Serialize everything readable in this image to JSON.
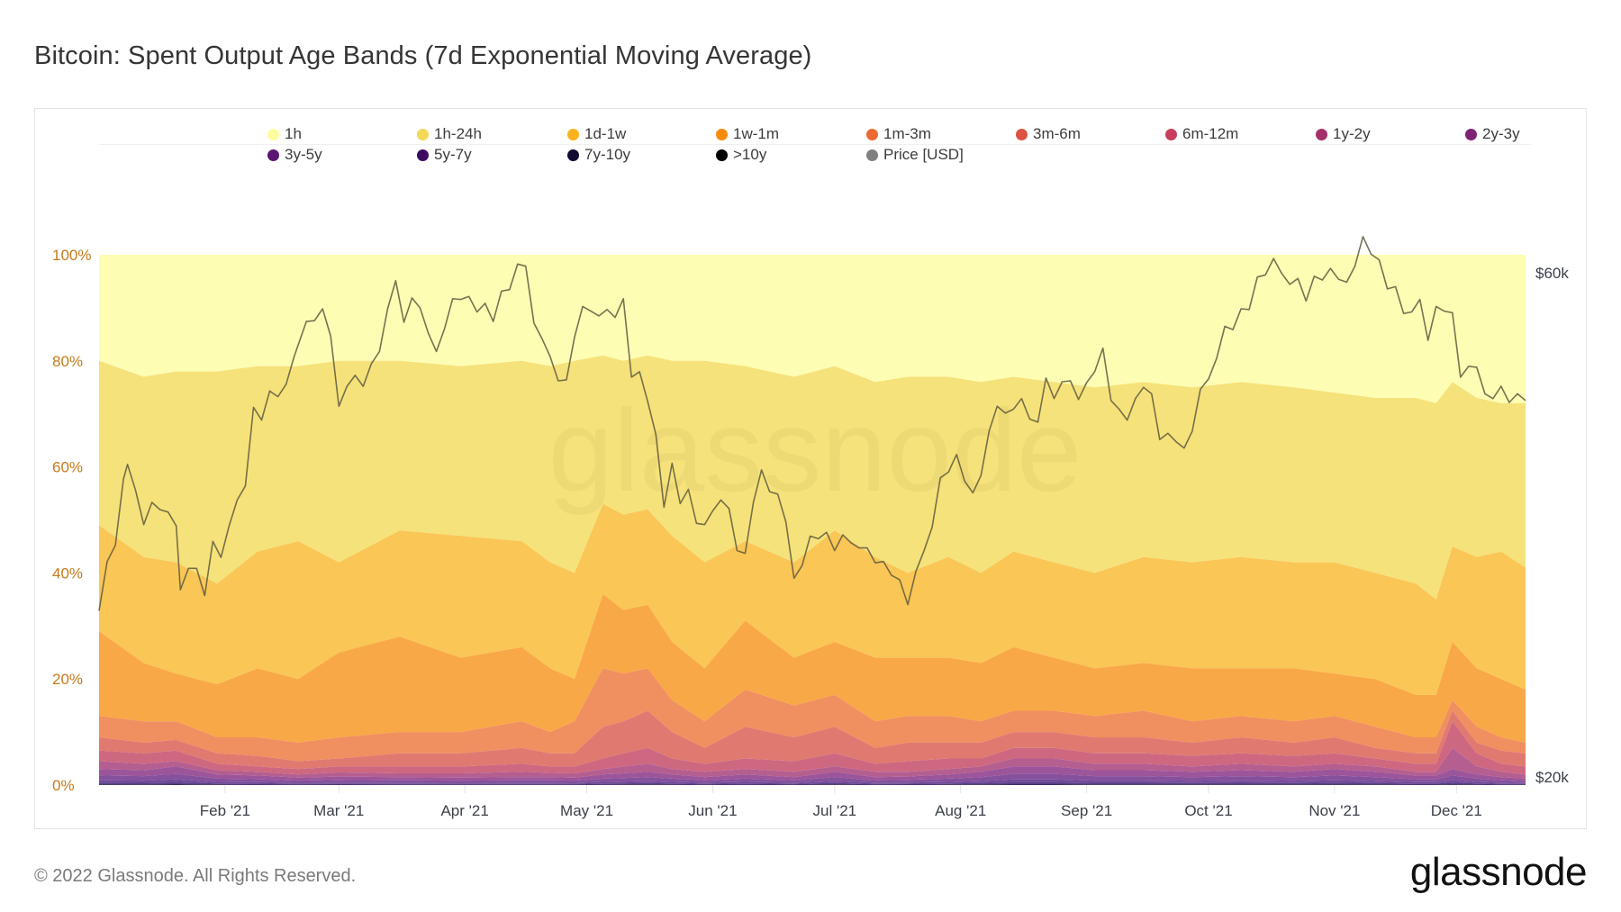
{
  "title": "Bitcoin: Spent Output Age Bands (7d Exponential Moving Average)",
  "footer": {
    "copyright": "© 2022 Glassnode. All Rights Reserved.",
    "logo": "glassnode"
  },
  "watermark": "glassnode",
  "chart_data": {
    "type": "area",
    "stacked": true,
    "title": "Bitcoin: Spent Output Age Bands (7d Exponential Moving Average)",
    "x_unit": "day of year 2021",
    "x_range": [
      1,
      352
    ],
    "y_left": {
      "label": "",
      "range": [
        0,
        100
      ],
      "ticks": [
        "0%",
        "20%",
        "40%",
        "60%",
        "80%",
        "100%"
      ],
      "tick_values": [
        0,
        20,
        40,
        60,
        80,
        100
      ]
    },
    "y_right": {
      "label": "Price [USD]",
      "scale": "log",
      "ticks": [
        "$20k",
        "$60k"
      ],
      "tick_values": [
        20,
        60
      ]
    },
    "x_ticks": [
      {
        "label": "Feb '21",
        "day": 32
      },
      {
        "label": "Mar '21",
        "day": 60
      },
      {
        "label": "Apr '21",
        "day": 91
      },
      {
        "label": "May '21",
        "day": 121
      },
      {
        "label": "Jun '21",
        "day": 152
      },
      {
        "label": "Jul '21",
        "day": 182
      },
      {
        "label": "Aug '21",
        "day": 213
      },
      {
        "label": "Sep '21",
        "day": 244
      },
      {
        "label": "Oct '21",
        "day": 274
      },
      {
        "label": "Nov '21",
        "day": 305
      },
      {
        "label": "Dec '21",
        "day": 335
      }
    ],
    "legend": [
      {
        "name": "1h",
        "color": "#fdfdb3"
      },
      {
        "name": "1h-24h",
        "color": "#f6e27a"
      },
      {
        "name": "1d-1w",
        "color": "#fac656"
      },
      {
        "name": "1w-1m",
        "color": "#f9a847"
      },
      {
        "name": "1m-3m",
        "color": "#f08f60"
      },
      {
        "name": "3m-6m",
        "color": "#e07a70"
      },
      {
        "name": "6m-12m",
        "color": "#ce6880"
      },
      {
        "name": "1y-2y",
        "color": "#b55e90"
      },
      {
        "name": "2y-3y",
        "color": "#9c559a"
      },
      {
        "name": "3y-5y",
        "color": "#85509c"
      },
      {
        "name": "5y-7y",
        "color": "#704a98"
      },
      {
        "name": "7y-10y",
        "color": "#5b3f88"
      },
      {
        "name": ">10y",
        "color": "#3c2c60"
      },
      {
        "name": "Price [USD]",
        "color": "#6b6b55"
      }
    ],
    "legend_dot_colors": [
      "#fdfd9f",
      "#f3d955",
      "#fab21e",
      "#f98a0d",
      "#ec6a32",
      "#dc5343",
      "#c83e5c",
      "#a6306a",
      "#7d2274",
      "#5c1472",
      "#3d0a61",
      "#120a31",
      "#000000",
      "#808080"
    ],
    "legend_position": "top",
    "band_boundaries_note": "cumulative percent tops: B1=top of 1h-24h, B2=top of 1d-1w, B3=top of 1w-1m, B4=top of 1m-3m, B5=top of 3m-6m, B6=top of 6m-12m, B7=top of 1y-2y, B8=top of 2y-3y; oldest split of B8",
    "oldest_split": [
      0.4,
      0.3,
      0.15,
      0.1,
      0.05
    ],
    "bands": [
      {
        "day": 1,
        "B": [
          80,
          49,
          29,
          13,
          9,
          6.5,
          4.5,
          3
        ]
      },
      {
        "day": 12,
        "B": [
          77,
          43,
          23,
          12,
          8,
          6,
          4,
          2.8
        ]
      },
      {
        "day": 20,
        "B": [
          78,
          42,
          21,
          12,
          8.5,
          6.5,
          4.5,
          3.5
        ]
      },
      {
        "day": 30,
        "B": [
          78,
          38,
          19,
          9,
          6,
          4,
          2.8,
          2
        ]
      },
      {
        "day": 40,
        "B": [
          79,
          44,
          22,
          9,
          5.5,
          3.5,
          2.5,
          1.8
        ]
      },
      {
        "day": 50,
        "B": [
          79,
          46,
          20,
          8,
          4.5,
          3,
          2,
          1.4
        ]
      },
      {
        "day": 60,
        "B": [
          80,
          42,
          25,
          9,
          5,
          3.5,
          2.4,
          1.6
        ]
      },
      {
        "day": 75,
        "B": [
          80,
          48,
          28,
          10,
          6,
          3.5,
          2.2,
          1.5
        ]
      },
      {
        "day": 90,
        "B": [
          79,
          47,
          24,
          10,
          6,
          3.5,
          2.2,
          1.4
        ]
      },
      {
        "day": 105,
        "B": [
          80,
          46,
          26,
          12,
          7,
          4,
          2.5,
          1.5
        ]
      },
      {
        "day": 112,
        "B": [
          79,
          42,
          22,
          10,
          6,
          3.5,
          2.3,
          1.5
        ]
      },
      {
        "day": 118,
        "B": [
          80,
          40,
          20,
          12,
          6,
          3.5,
          2.2,
          1.4
        ]
      },
      {
        "day": 125,
        "B": [
          81,
          53,
          36,
          22,
          11,
          5,
          3,
          2
        ]
      },
      {
        "day": 130,
        "B": [
          80,
          51,
          33,
          21,
          12,
          6,
          3.5,
          2.2
        ]
      },
      {
        "day": 136,
        "B": [
          81,
          52,
          34,
          22,
          14,
          7,
          4,
          2.5
        ]
      },
      {
        "day": 142,
        "B": [
          80,
          47,
          27,
          16,
          10,
          5,
          3,
          2
        ]
      },
      {
        "day": 150,
        "B": [
          80,
          42,
          22,
          12,
          7,
          4,
          2.5,
          1.5
        ]
      },
      {
        "day": 160,
        "B": [
          79,
          46,
          31,
          18,
          11,
          5,
          3,
          2
        ]
      },
      {
        "day": 172,
        "B": [
          77,
          42,
          24,
          15,
          9,
          4.5,
          2.5,
          1.5
        ]
      },
      {
        "day": 182,
        "B": [
          79,
          48,
          27,
          17,
          11,
          6,
          3.5,
          2.5
        ]
      },
      {
        "day": 192,
        "B": [
          76,
          43,
          24,
          12,
          7,
          4,
          2.5,
          1.5
        ]
      },
      {
        "day": 200,
        "B": [
          77,
          40,
          24,
          13,
          8,
          4.5,
          2.5,
          1.6
        ]
      },
      {
        "day": 210,
        "B": [
          77,
          43,
          24,
          13,
          8,
          5,
          3,
          2
        ]
      },
      {
        "day": 218,
        "B": [
          76,
          40,
          23,
          12,
          8,
          5,
          3.5,
          2.5
        ]
      },
      {
        "day": 226,
        "B": [
          77,
          44,
          26,
          14,
          10,
          7,
          5,
          3.5
        ]
      },
      {
        "day": 236,
        "B": [
          76,
          42,
          24,
          14,
          10,
          7,
          5,
          3.5
        ]
      },
      {
        "day": 246,
        "B": [
          75,
          40,
          22,
          13,
          9,
          6,
          4,
          2.8
        ]
      },
      {
        "day": 258,
        "B": [
          76,
          43,
          23,
          14,
          9,
          6,
          4,
          2.8
        ]
      },
      {
        "day": 270,
        "B": [
          75,
          42,
          22,
          12,
          8,
          5.5,
          3.5,
          2.5
        ]
      },
      {
        "day": 282,
        "B": [
          76,
          43,
          22,
          13,
          9,
          6,
          4,
          2.8
        ]
      },
      {
        "day": 295,
        "B": [
          75,
          42,
          22,
          12,
          8,
          5.5,
          3.5,
          2.5
        ]
      },
      {
        "day": 305,
        "B": [
          74,
          42,
          21,
          13,
          9,
          6,
          4,
          3
        ]
      },
      {
        "day": 315,
        "B": [
          73,
          40,
          20,
          11,
          7,
          5,
          3.5,
          2.5
        ]
      },
      {
        "day": 325,
        "B": [
          73,
          38,
          17,
          9,
          6,
          4,
          2.5,
          1.8
        ]
      },
      {
        "day": 330,
        "B": [
          72,
          35,
          17,
          9,
          6,
          4,
          2.5,
          1.8
        ]
      },
      {
        "day": 334,
        "B": [
          76,
          45,
          27,
          16,
          14,
          12,
          7,
          3
        ]
      },
      {
        "day": 340,
        "B": [
          73,
          43,
          22,
          11,
          8,
          6,
          3.5,
          2
        ]
      },
      {
        "day": 346,
        "B": [
          72,
          44,
          20,
          9,
          6.5,
          4,
          2.5,
          1.5
        ]
      },
      {
        "day": 352,
        "B": [
          72,
          41,
          18,
          8,
          6,
          3.5,
          2,
          1.2
        ]
      }
    ],
    "price_usd_k": [
      [
        1,
        29.4
      ],
      [
        3,
        32.8
      ],
      [
        5,
        34.0
      ],
      [
        7,
        39.4
      ],
      [
        8,
        40.7
      ],
      [
        10,
        38.4
      ],
      [
        12,
        35.6
      ],
      [
        14,
        37.4
      ],
      [
        16,
        36.8
      ],
      [
        18,
        36.6
      ],
      [
        20,
        35.5
      ],
      [
        21,
        30.8
      ],
      [
        23,
        32.3
      ],
      [
        25,
        32.3
      ],
      [
        27,
        30.4
      ],
      [
        29,
        34.3
      ],
      [
        31,
        33.1
      ],
      [
        33,
        35.5
      ],
      [
        35,
        37.6
      ],
      [
        37,
        38.8
      ],
      [
        39,
        46.2
      ],
      [
        41,
        44.9
      ],
      [
        43,
        47.9
      ],
      [
        45,
        47.3
      ],
      [
        47,
        48.6
      ],
      [
        49,
        51.7
      ],
      [
        52,
        55.9
      ],
      [
        54,
        56.0
      ],
      [
        56,
        57.5
      ],
      [
        58,
        54.1
      ],
      [
        60,
        46.3
      ],
      [
        62,
        48.4
      ],
      [
        64,
        49.6
      ],
      [
        66,
        48.4
      ],
      [
        68,
        50.9
      ],
      [
        70,
        52.3
      ],
      [
        72,
        57.5
      ],
      [
        74,
        61.2
      ],
      [
        76,
        55.8
      ],
      [
        78,
        58.9
      ],
      [
        80,
        57.6
      ],
      [
        82,
        54.5
      ],
      [
        84,
        52.3
      ],
      [
        86,
        55.0
      ],
      [
        88,
        58.8
      ],
      [
        90,
        58.7
      ],
      [
        92,
        59.1
      ],
      [
        94,
        57.1
      ],
      [
        96,
        58.2
      ],
      [
        98,
        55.9
      ],
      [
        100,
        59.8
      ],
      [
        102,
        60.0
      ],
      [
        104,
        63.5
      ],
      [
        106,
        63.2
      ],
      [
        108,
        55.7
      ],
      [
        110,
        53.8
      ],
      [
        112,
        51.7
      ],
      [
        114,
        49.0
      ],
      [
        116,
        49.1
      ],
      [
        118,
        54.0
      ],
      [
        120,
        57.8
      ],
      [
        122,
        57.2
      ],
      [
        124,
        56.6
      ],
      [
        126,
        57.4
      ],
      [
        128,
        56.4
      ],
      [
        130,
        58.8
      ],
      [
        132,
        49.4
      ],
      [
        134,
        50.0
      ],
      [
        136,
        46.8
      ],
      [
        138,
        43.5
      ],
      [
        140,
        37.0
      ],
      [
        142,
        40.8
      ],
      [
        144,
        37.3
      ],
      [
        146,
        38.5
      ],
      [
        148,
        35.7
      ],
      [
        150,
        35.6
      ],
      [
        152,
        36.7
      ],
      [
        154,
        37.6
      ],
      [
        156,
        36.9
      ],
      [
        158,
        33.6
      ],
      [
        160,
        33.4
      ],
      [
        162,
        37.4
      ],
      [
        164,
        40.2
      ],
      [
        166,
        38.3
      ],
      [
        168,
        38.1
      ],
      [
        170,
        35.8
      ],
      [
        172,
        31.6
      ],
      [
        174,
        32.5
      ],
      [
        176,
        34.7
      ],
      [
        178,
        34.5
      ],
      [
        180,
        35.0
      ],
      [
        182,
        33.6
      ],
      [
        184,
        34.8
      ],
      [
        186,
        34.2
      ],
      [
        188,
        33.8
      ],
      [
        190,
        33.8
      ],
      [
        192,
        32.7
      ],
      [
        194,
        32.8
      ],
      [
        196,
        31.8
      ],
      [
        198,
        31.5
      ],
      [
        200,
        29.8
      ],
      [
        202,
        32.1
      ],
      [
        204,
        33.6
      ],
      [
        206,
        35.4
      ],
      [
        208,
        39.5
      ],
      [
        210,
        40.0
      ],
      [
        212,
        41.6
      ],
      [
        214,
        39.2
      ],
      [
        216,
        38.2
      ],
      [
        218,
        39.7
      ],
      [
        220,
        43.8
      ],
      [
        222,
        46.3
      ],
      [
        224,
        45.6
      ],
      [
        226,
        46.0
      ],
      [
        228,
        47.1
      ],
      [
        230,
        45.0
      ],
      [
        232,
        44.7
      ],
      [
        234,
        49.3
      ],
      [
        236,
        47.1
      ],
      [
        238,
        48.9
      ],
      [
        240,
        49.0
      ],
      [
        242,
        47.0
      ],
      [
        244,
        48.8
      ],
      [
        246,
        50.0
      ],
      [
        248,
        52.7
      ],
      [
        250,
        46.9
      ],
      [
        252,
        46.0
      ],
      [
        254,
        44.9
      ],
      [
        256,
        47.1
      ],
      [
        258,
        48.3
      ],
      [
        260,
        47.6
      ],
      [
        262,
        43.0
      ],
      [
        264,
        43.6
      ],
      [
        266,
        42.8
      ],
      [
        268,
        42.2
      ],
      [
        270,
        43.8
      ],
      [
        272,
        48.1
      ],
      [
        274,
        49.2
      ],
      [
        276,
        51.5
      ],
      [
        278,
        55.3
      ],
      [
        280,
        54.9
      ],
      [
        282,
        57.5
      ],
      [
        284,
        57.4
      ],
      [
        286,
        61.7
      ],
      [
        288,
        62.0
      ],
      [
        290,
        64.3
      ],
      [
        292,
        62.2
      ],
      [
        294,
        60.7
      ],
      [
        296,
        61.5
      ],
      [
        298,
        58.5
      ],
      [
        300,
        61.8
      ],
      [
        302,
        61.3
      ],
      [
        304,
        62.9
      ],
      [
        306,
        61.4
      ],
      [
        308,
        61.0
      ],
      [
        310,
        63.2
      ],
      [
        312,
        67.5
      ],
      [
        314,
        64.9
      ],
      [
        316,
        64.1
      ],
      [
        318,
        60.1
      ],
      [
        320,
        60.4
      ],
      [
        322,
        56.9
      ],
      [
        324,
        57.1
      ],
      [
        326,
        58.7
      ],
      [
        328,
        53.6
      ],
      [
        330,
        57.8
      ],
      [
        332,
        57.2
      ],
      [
        334,
        57.0
      ],
      [
        336,
        49.4
      ],
      [
        338,
        50.6
      ],
      [
        340,
        50.5
      ],
      [
        342,
        47.6
      ],
      [
        344,
        47.1
      ],
      [
        346,
        48.4
      ],
      [
        348,
        46.7
      ],
      [
        350,
        47.6
      ],
      [
        352,
        46.9
      ]
    ]
  }
}
